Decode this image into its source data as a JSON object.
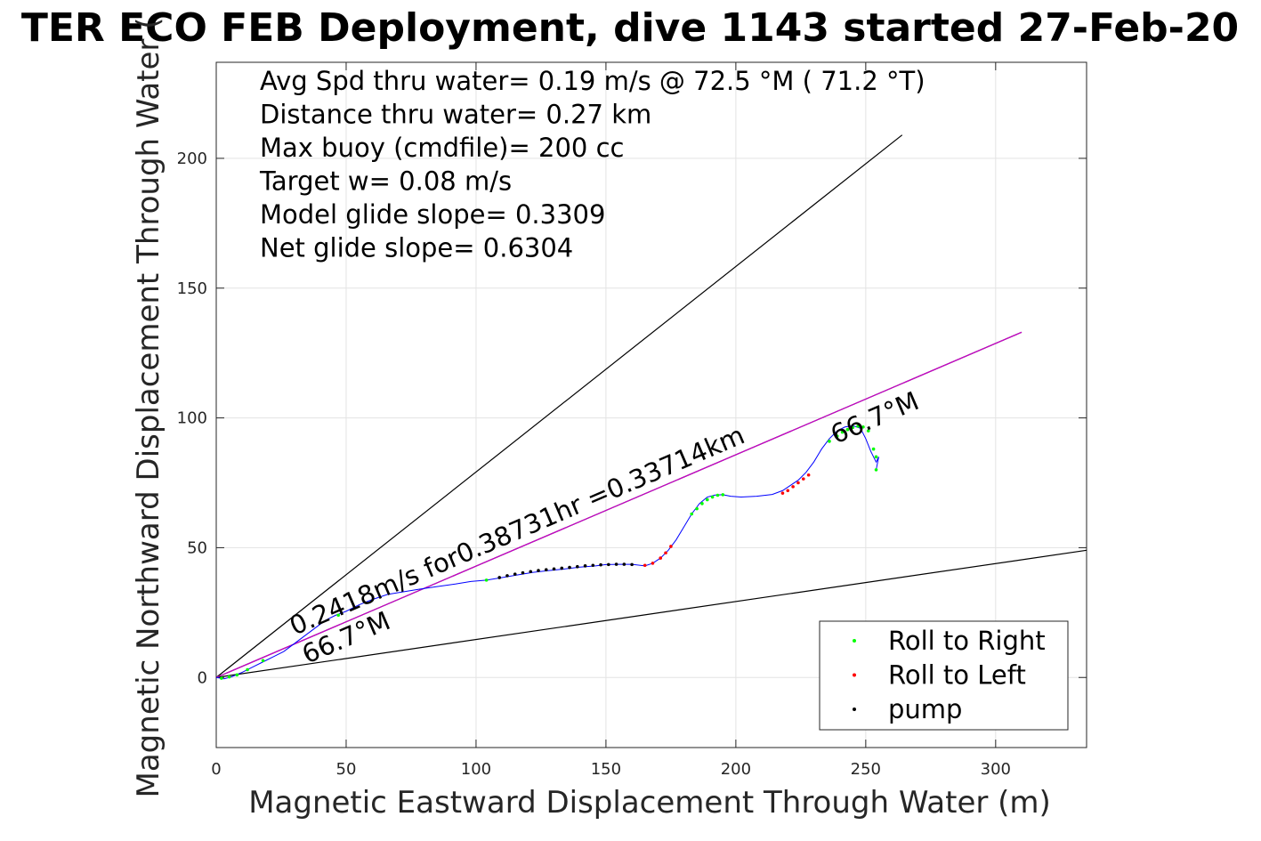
{
  "chart_data": {
    "type": "line",
    "title": "TER ECO FEB Deployment, dive 1143 started 27-Feb-20",
    "xlabel": "Magnetic Eastward Displacement Through Water (m)",
    "ylabel": "Magnetic Northward Displacement Through Water (",
    "xlim": [
      0,
      335
    ],
    "ylim": [
      -27,
      237
    ],
    "xticks": [
      0,
      50,
      100,
      150,
      200,
      250,
      300
    ],
    "yticks": [
      0,
      50,
      100,
      150,
      200
    ],
    "grid": true,
    "annotations": [
      "Avg Spd thru water=  0.19 m/s @  72.5 °M ( 71.2 °T)",
      "Distance thru water=  0.27 km",
      "Max buoy (cmdfile)= 200 cc",
      "Target w= 0.08 m/s",
      "Model glide slope= 0.3309",
      "Net glide slope= 0.6304"
    ],
    "line_labels": {
      "track": "0.2418m/s for0.38731hr =0.33714km",
      "lower_heading": "66.7°M",
      "upper_heading": "66.7°M"
    },
    "reference_lines": [
      {
        "from": [
          0,
          0
        ],
        "to": [
          264,
          209
        ],
        "color": "#000000"
      },
      {
        "from": [
          0,
          0
        ],
        "to": [
          335,
          49
        ],
        "color": "#000000"
      },
      {
        "from": [
          0,
          0
        ],
        "to": [
          310,
          133
        ],
        "color": "#000000"
      },
      {
        "from": [
          0,
          0
        ],
        "to": [
          310,
          133
        ],
        "color": "#cc00cc"
      }
    ],
    "legend": {
      "position": "bottom-right",
      "entries": [
        {
          "label": "Roll to Right",
          "color": "#00ff00"
        },
        {
          "label": "Roll to Left",
          "color": "#ff0000"
        },
        {
          "label": "pump",
          "color": "#000000"
        }
      ]
    },
    "series": [
      {
        "color": "#0000ff",
        "x": [
          0,
          3,
          6,
          10,
          14,
          18,
          22,
          26,
          30,
          34,
          38,
          42,
          46,
          50,
          55,
          60,
          66,
          72,
          78,
          85,
          92,
          98,
          104,
          110,
          116,
          122,
          128,
          134,
          140,
          146,
          150,
          155,
          160,
          165,
          168,
          171,
          174,
          177,
          180,
          183,
          186,
          189,
          192,
          195,
          198,
          202,
          208,
          214,
          218,
          221,
          224,
          227,
          230,
          233,
          236,
          239,
          242,
          245,
          248,
          250,
          252,
          254,
          255,
          254
        ],
        "y": [
          0,
          -0.5,
          0.3,
          2,
          4,
          6,
          8,
          10,
          13,
          16,
          19,
          22,
          24,
          25.5,
          28,
          30,
          32,
          33,
          34,
          35,
          36,
          37,
          37.5,
          38.5,
          39.5,
          40.5,
          41.2,
          41.8,
          42.5,
          43,
          43.5,
          43.6,
          43.6,
          43,
          44,
          46,
          49,
          53,
          58,
          63,
          67,
          69.5,
          70.3,
          70.4,
          69.8,
          69.5,
          69.8,
          70.5,
          72,
          74,
          76,
          79,
          83,
          88,
          92,
          95,
          96.5,
          97,
          96,
          92,
          87,
          83,
          85,
          80
        ]
      }
    ],
    "markers": {
      "roll_right_x": [
        2,
        5,
        8,
        12,
        18,
        47,
        104,
        183,
        185,
        187,
        189,
        191,
        193,
        195,
        236,
        239,
        241,
        243,
        245,
        247,
        249,
        251,
        253,
        254,
        254
      ],
      "roll_right_y": [
        -0.3,
        0.2,
        1,
        3,
        6.5,
        24,
        37.5,
        63,
        65,
        67,
        68.5,
        69.5,
        70.2,
        70.4,
        91,
        93,
        94.5,
        95.5,
        96.3,
        96.8,
        96.5,
        95,
        88,
        85,
        80
      ],
      "roll_left_x": [
        165,
        168,
        171,
        173,
        175,
        218,
        220,
        222,
        224,
        226,
        228
      ],
      "roll_left_y": [
        43.2,
        44,
        46,
        48,
        50.5,
        71,
        72,
        73.5,
        75,
        76.5,
        78
      ],
      "pump_x": [
        109,
        112,
        115,
        118,
        121,
        124,
        127,
        130,
        133,
        136,
        139,
        142,
        145,
        148,
        151,
        154,
        157,
        160
      ],
      "pump_y": [
        38.5,
        39.2,
        39.8,
        40.3,
        40.8,
        41.2,
        41.5,
        41.8,
        42.1,
        42.4,
        42.7,
        43,
        43.2,
        43.4,
        43.5,
        43.6,
        43.6,
        43.5
      ]
    }
  }
}
